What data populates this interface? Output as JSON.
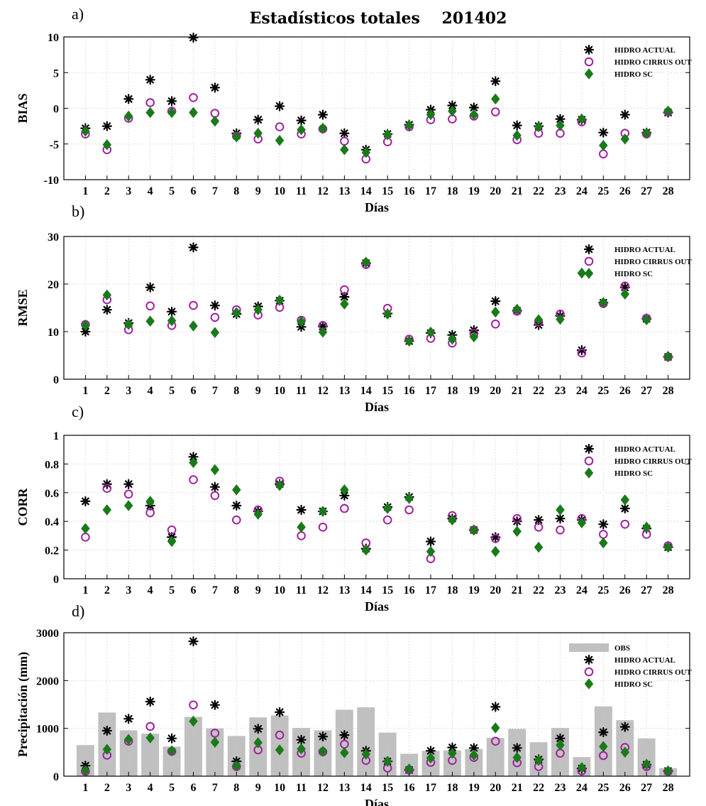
{
  "figure": {
    "title": "Estadísticos totales    201402"
  },
  "colors": {
    "actual": "#000000",
    "cirrus": "#a020a0",
    "sc": "#1a7a1a",
    "obs": "#c0c0c0"
  },
  "legend_text": {
    "obs": "OBS",
    "actual": "HIDRO ACTUAL",
    "cirrus": "HIDRO CIRRUS OUT",
    "sc": "HIDRO SC"
  },
  "chart_data": [
    {
      "type": "scatter",
      "panel_label": "a)",
      "xlabel": "Días",
      "ylabel": "BIAS",
      "ylim": [
        -10,
        10
      ],
      "yticks": [
        "-10",
        "-5",
        "0",
        "5",
        "10"
      ],
      "grid": true,
      "legend_position": "top-right",
      "categories": [
        "1",
        "2",
        "3",
        "4",
        "5",
        "6",
        "7",
        "8",
        "9",
        "10",
        "11",
        "12",
        "13",
        "14",
        "15",
        "16",
        "17",
        "18",
        "19",
        "20",
        "21",
        "22",
        "23",
        "24",
        "25",
        "26",
        "27",
        "28"
      ],
      "series": [
        {
          "name": "HIDRO ACTUAL",
          "marker": "asterisk",
          "values": [
            -2.8,
            -2.5,
            1.3,
            4.0,
            1.0,
            9.9,
            2.9,
            -3.5,
            -1.6,
            0.3,
            -1.7,
            -0.9,
            -3.5,
            -5.8,
            -3.6,
            -2.3,
            -0.2,
            0.4,
            0.1,
            3.8,
            -2.4,
            -2.5,
            -1.5,
            -1.6,
            -3.4,
            -0.9,
            -3.4,
            -0.6
          ]
        },
        {
          "name": "HIDRO CIRRUS OUT",
          "marker": "circle",
          "values": [
            -3.6,
            -5.8,
            -1.4,
            0.8,
            -0.4,
            1.5,
            -0.7,
            -3.9,
            -4.3,
            -2.6,
            -3.6,
            -2.9,
            -4.6,
            -7.1,
            -4.7,
            -2.6,
            -1.6,
            -1.5,
            -1.1,
            -0.5,
            -4.4,
            -3.5,
            -3.5,
            -1.9,
            -6.4,
            -3.5,
            -3.6,
            -0.5
          ]
        },
        {
          "name": "HIDRO SC",
          "marker": "diamond",
          "values": [
            -3.2,
            -5.1,
            -1.1,
            -0.6,
            -0.6,
            -0.6,
            -1.8,
            -4.0,
            -3.5,
            -4.5,
            -3.0,
            -2.8,
            -5.8,
            -6.2,
            -3.7,
            -2.4,
            -0.9,
            -0.4,
            -0.9,
            1.3,
            -3.8,
            -2.6,
            -2.4,
            -1.5,
            -5.2,
            -4.3,
            -3.5,
            -0.4
          ]
        }
      ]
    },
    {
      "type": "scatter",
      "panel_label": "b)",
      "xlabel": "Días",
      "ylabel": "RMSE",
      "ylim": [
        0,
        30
      ],
      "yticks": [
        "0",
        "10",
        "20",
        "30"
      ],
      "grid": true,
      "legend_position": "top-right",
      "categories": [
        "1",
        "2",
        "3",
        "4",
        "5",
        "6",
        "7",
        "8",
        "9",
        "10",
        "11",
        "12",
        "13",
        "14",
        "15",
        "16",
        "17",
        "18",
        "19",
        "20",
        "21",
        "22",
        "23",
        "24",
        "25",
        "26",
        "27",
        "28"
      ],
      "series": [
        {
          "name": "HIDRO ACTUAL",
          "marker": "asterisk",
          "values": [
            10.0,
            14.6,
            11.8,
            19.3,
            14.2,
            27.7,
            15.5,
            13.7,
            15.3,
            16.5,
            11.0,
            11.1,
            17.3,
            24.4,
            13.8,
            8.0,
            9.7,
            9.3,
            10.3,
            16.4,
            14.4,
            11.4,
            13.3,
            6.1,
            16.1,
            19.3,
            12.7,
            4.7
          ]
        },
        {
          "name": "HIDRO CIRRUS OUT",
          "marker": "circle",
          "values": [
            11.5,
            16.7,
            10.4,
            15.4,
            11.3,
            15.5,
            13.0,
            14.6,
            13.5,
            15.1,
            12.4,
            11.3,
            18.8,
            24.1,
            14.9,
            8.4,
            8.6,
            7.6,
            9.6,
            11.6,
            14.3,
            12.0,
            13.7,
            5.5,
            15.9,
            19.6,
            12.8,
            4.7
          ]
        },
        {
          "name": "HIDRO SC",
          "marker": "diamond",
          "values": [
            11.3,
            17.7,
            11.5,
            12.2,
            12.3,
            11.2,
            9.8,
            14.0,
            14.6,
            16.6,
            12.1,
            9.9,
            15.8,
            24.6,
            13.7,
            8.0,
            9.9,
            8.4,
            8.9,
            14.1,
            14.7,
            12.5,
            12.6,
            22.3,
            16.1,
            17.9,
            12.5,
            4.8
          ]
        }
      ]
    },
    {
      "type": "scatter",
      "panel_label": "c)",
      "xlabel": "Días",
      "ylabel": "CORR",
      "ylim": [
        0,
        1
      ],
      "yticks": [
        "0",
        "0.2",
        "0.4",
        "0.6",
        "0.8",
        "1"
      ],
      "grid": true,
      "legend_position": "top-right",
      "categories": [
        "1",
        "2",
        "3",
        "4",
        "5",
        "6",
        "7",
        "8",
        "9",
        "10",
        "11",
        "12",
        "13",
        "14",
        "15",
        "16",
        "17",
        "18",
        "19",
        "20",
        "21",
        "22",
        "23",
        "24",
        "25",
        "26",
        "27",
        "28"
      ],
      "series": [
        {
          "name": "HIDRO ACTUAL",
          "marker": "asterisk",
          "values": [
            0.54,
            0.66,
            0.66,
            0.51,
            0.29,
            0.85,
            0.64,
            0.51,
            0.47,
            0.66,
            0.48,
            0.47,
            0.58,
            0.21,
            0.5,
            0.57,
            0.26,
            0.42,
            0.34,
            0.29,
            0.4,
            0.41,
            0.42,
            0.41,
            0.38,
            0.49,
            0.35,
            0.22
          ]
        },
        {
          "name": "HIDRO CIRRUS OUT",
          "marker": "circle",
          "values": [
            0.29,
            0.63,
            0.59,
            0.46,
            0.34,
            0.69,
            0.58,
            0.41,
            0.48,
            0.68,
            0.3,
            0.36,
            0.49,
            0.25,
            0.41,
            0.48,
            0.14,
            0.44,
            0.34,
            0.28,
            0.42,
            0.36,
            0.34,
            0.42,
            0.31,
            0.38,
            0.31,
            0.23
          ]
        },
        {
          "name": "HIDRO SC",
          "marker": "diamond",
          "values": [
            0.35,
            0.48,
            0.51,
            0.54,
            0.26,
            0.81,
            0.76,
            0.62,
            0.45,
            0.65,
            0.36,
            0.47,
            0.62,
            0.2,
            0.49,
            0.56,
            0.19,
            0.41,
            0.34,
            0.19,
            0.33,
            0.22,
            0.48,
            0.39,
            0.25,
            0.55,
            0.36,
            0.22
          ]
        }
      ]
    },
    {
      "type": "bar",
      "panel_label": "d)",
      "xlabel": "Días",
      "ylabel": "Precipitación (mm)",
      "ylim": [
        0,
        3000
      ],
      "yticks": [
        "0",
        "1000",
        "2000",
        "3000"
      ],
      "grid": true,
      "legend_position": "top-right",
      "categories": [
        "1",
        "2",
        "3",
        "4",
        "5",
        "6",
        "7",
        "8",
        "9",
        "10",
        "11",
        "12",
        "13",
        "14",
        "15",
        "16",
        "17",
        "18",
        "19",
        "20",
        "21",
        "22",
        "23",
        "24",
        "25",
        "26",
        "27",
        "28"
      ],
      "bars": {
        "name": "OBS",
        "values": [
          650,
          1330,
          960,
          890,
          620,
          1240,
          1000,
          840,
          1230,
          1270,
          1010,
          960,
          1390,
          1440,
          910,
          470,
          530,
          540,
          570,
          800,
          990,
          710,
          1010,
          400,
          1460,
          1170,
          790,
          170
        ]
      },
      "series": [
        {
          "name": "HIDRO ACTUAL",
          "marker": "asterisk",
          "values": [
            220,
            950,
            1200,
            1560,
            790,
            2820,
            1490,
            310,
            990,
            1340,
            760,
            830,
            860,
            530,
            310,
            130,
            530,
            600,
            590,
            1450,
            590,
            350,
            790,
            160,
            920,
            1030,
            240,
            110
          ]
        },
        {
          "name": "HIDRO CIRRUS OUT",
          "marker": "circle",
          "values": [
            100,
            440,
            730,
            1040,
            520,
            1490,
            900,
            200,
            550,
            860,
            480,
            510,
            670,
            330,
            170,
            130,
            290,
            330,
            390,
            730,
            280,
            200,
            480,
            110,
            430,
            600,
            200,
            100
          ]
        },
        {
          "name": "HIDRO SC",
          "marker": "diamond",
          "values": [
            120,
            560,
            770,
            800,
            530,
            1150,
            710,
            220,
            700,
            550,
            570,
            520,
            490,
            460,
            310,
            150,
            380,
            480,
            440,
            1010,
            390,
            330,
            650,
            180,
            620,
            500,
            250,
            110
          ]
        }
      ]
    }
  ]
}
